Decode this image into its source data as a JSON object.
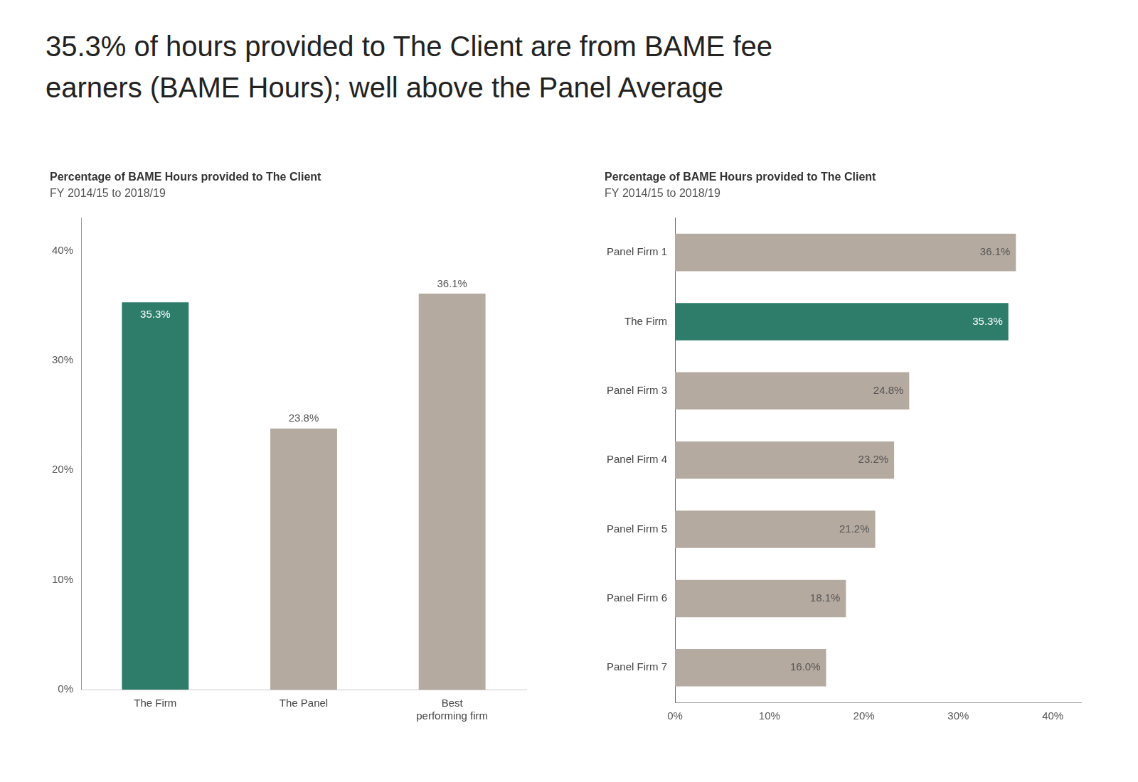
{
  "title": [
    "35.3% of hours provided to The Client are from BAME fee",
    "earners (BAME Hours); well above the Panel Average"
  ],
  "chart_data": [
    {
      "type": "bar",
      "title": "Percentage of BAME Hours provided to The Client",
      "subtitle": "FY 2014/15 to 2018/19",
      "categories": [
        "The Firm",
        "The Panel",
        "Best\nperforming firm"
      ],
      "values": [
        35.3,
        23.8,
        36.1
      ],
      "value_labels": [
        "35.3%",
        "23.8%",
        "36.1%"
      ],
      "colors": [
        "#2e7d6b",
        "#b5aaa0",
        "#b5aaa0"
      ],
      "ylim": [
        0,
        43
      ],
      "yticks": [
        {
          "value": 0,
          "label": "0%"
        },
        {
          "value": 10,
          "label": "10%"
        },
        {
          "value": 20,
          "label": "20%"
        },
        {
          "value": 30,
          "label": "30%"
        },
        {
          "value": 40,
          "label": "40%"
        }
      ],
      "data_labels": true,
      "grid": false
    },
    {
      "type": "bar",
      "orientation": "horizontal",
      "title": "Percentage of BAME Hours provided to The Client",
      "subtitle": "FY 2014/15 to 2018/19",
      "categories": [
        "Panel Firm 1",
        "The Firm",
        "Panel Firm 3",
        "Panel Firm 4",
        "Panel Firm 5",
        "Panel Firm 6",
        "Panel Firm 7"
      ],
      "values": [
        36.1,
        35.3,
        24.8,
        23.2,
        21.2,
        18.1,
        16.0
      ],
      "value_labels": [
        "36.1%",
        "35.3%",
        "24.8%",
        "23.2%",
        "21.2%",
        "18.1%",
        "16.0%"
      ],
      "colors": [
        "#b5aaa0",
        "#2e7d6b",
        "#b5aaa0",
        "#b5aaa0",
        "#b5aaa0",
        "#b5aaa0",
        "#b5aaa0"
      ],
      "xlim": [
        0,
        43
      ],
      "xticks": [
        {
          "value": 0,
          "label": "0%"
        },
        {
          "value": 10,
          "label": "10%"
        },
        {
          "value": 20,
          "label": "20%"
        },
        {
          "value": 30,
          "label": "30%"
        },
        {
          "value": 40,
          "label": "40%"
        }
      ],
      "data_labels": true,
      "grid": false
    }
  ]
}
